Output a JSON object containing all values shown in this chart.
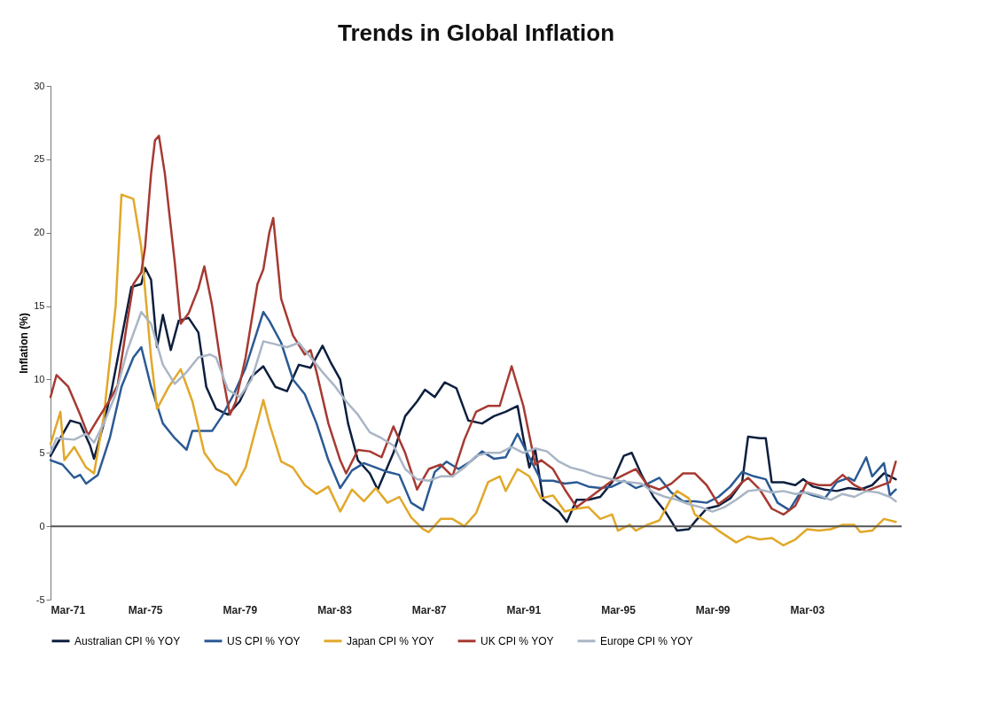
{
  "chart_data": {
    "type": "line",
    "title": "Trends in Global Inflation",
    "ylabel": "Inflation (%)",
    "xlim": [
      "1971-03",
      "2007-03"
    ],
    "ylim": [
      -5,
      30
    ],
    "yticks": [
      -5,
      0,
      5,
      10,
      15,
      20,
      25,
      30
    ],
    "xticks": [
      {
        "value": "1971-03",
        "label": "Mar-71"
      },
      {
        "value": "1975-03",
        "label": "Mar-75"
      },
      {
        "value": "1979-03",
        "label": "Mar-79"
      },
      {
        "value": "1983-03",
        "label": "Mar-83"
      },
      {
        "value": "1987-03",
        "label": "Mar-87"
      },
      {
        "value": "1991-03",
        "label": "Mar-91"
      },
      {
        "value": "1995-03",
        "label": "Mar-95"
      },
      {
        "value": "1999-03",
        "label": "Mar-99"
      },
      {
        "value": "2003-03",
        "label": "Mar-03"
      }
    ],
    "grid": false,
    "legend": "bottom",
    "marker": "none",
    "line_style": "solid",
    "ref_lines": [
      {
        "axis": "y",
        "value": 0,
        "color": "#555555"
      }
    ],
    "series": [
      {
        "name": "Australian CPI % YOY",
        "color": "#0d1f3f",
        "x": [
          "1971-03",
          "1971-08",
          "1972-01",
          "1972-06",
          "1972-11",
          "1973-01",
          "1973-06",
          "1973-10",
          "1974-03",
          "1974-08",
          "1975-01",
          "1975-03",
          "1975-06",
          "1975-09",
          "1975-12",
          "1976-04",
          "1976-08",
          "1977-01",
          "1977-06",
          "1977-10",
          "1978-03",
          "1978-09",
          "1979-03",
          "1979-09",
          "1980-03",
          "1980-09",
          "1981-03",
          "1981-09",
          "1982-03",
          "1982-09",
          "1983-01",
          "1983-06",
          "1983-10",
          "1984-03",
          "1984-09",
          "1985-01",
          "1985-09",
          "1986-03",
          "1986-09",
          "1987-01",
          "1987-06",
          "1987-11",
          "1988-05",
          "1988-11",
          "1989-06",
          "1989-12",
          "1990-06",
          "1990-12",
          "1991-03",
          "1991-06",
          "1991-09",
          "1992-01",
          "1992-09",
          "1993-01",
          "1993-06",
          "1993-12",
          "1994-06",
          "1994-12",
          "1995-06",
          "1995-10",
          "1996-03",
          "1996-09",
          "1997-03",
          "1997-09",
          "1998-03",
          "1998-06",
          "1998-12",
          "1999-06",
          "1999-12",
          "2000-06",
          "2000-09",
          "2001-03",
          "2001-06",
          "2001-09",
          "2002-03",
          "2002-09",
          "2003-01",
          "2003-06",
          "2003-12",
          "2004-06",
          "2004-12",
          "2005-06",
          "2005-12",
          "2006-06",
          "2006-12"
        ],
        "values": [
          4.8,
          6.0,
          7.2,
          7.0,
          5.5,
          4.6,
          7.0,
          9.3,
          12.8,
          16.3,
          16.5,
          17.6,
          16.8,
          12.2,
          14.4,
          12.0,
          14.0,
          14.2,
          13.2,
          9.5,
          8.0,
          7.6,
          8.5,
          10.2,
          10.9,
          9.5,
          9.2,
          11.0,
          10.8,
          12.3,
          11.2,
          10.0,
          7.0,
          4.5,
          3.6,
          2.5,
          5.0,
          7.5,
          8.5,
          9.3,
          8.8,
          9.8,
          9.4,
          7.2,
          7.0,
          7.5,
          7.8,
          8.2,
          6.0,
          4.0,
          5.2,
          1.8,
          1.0,
          0.3,
          1.8,
          1.8,
          2.0,
          3.0,
          4.8,
          5.0,
          3.5,
          2.0,
          1.0,
          -0.3,
          -0.2,
          0.3,
          1.2,
          1.4,
          1.9,
          3.0,
          6.1,
          6.0,
          6.0,
          3.0,
          3.0,
          2.8,
          3.2,
          2.7,
          2.5,
          2.4,
          2.6,
          2.5,
          2.8,
          3.6,
          3.2
        ]
      },
      {
        "name": "US CPI % YOY",
        "color": "#2b5a94",
        "x": [
          "1971-03",
          "1971-09",
          "1972-03",
          "1972-06",
          "1972-09",
          "1973-03",
          "1973-09",
          "1974-03",
          "1974-09",
          "1975-01",
          "1975-06",
          "1975-12",
          "1976-06",
          "1976-12",
          "1977-03",
          "1977-09",
          "1978-01",
          "1978-06",
          "1978-12",
          "1979-06",
          "1980-03",
          "1980-06",
          "1980-12",
          "1981-06",
          "1981-12",
          "1982-06",
          "1982-12",
          "1983-06",
          "1983-12",
          "1984-06",
          "1984-12",
          "1985-06",
          "1985-12",
          "1986-06",
          "1986-12",
          "1987-06",
          "1987-12",
          "1988-06",
          "1988-12",
          "1989-06",
          "1989-12",
          "1990-06",
          "1990-12",
          "1991-06",
          "1991-12",
          "1992-06",
          "1992-12",
          "1993-06",
          "1993-12",
          "1994-06",
          "1994-12",
          "1995-06",
          "1995-12",
          "1996-06",
          "1996-12",
          "1997-06",
          "1997-12",
          "1998-06",
          "1998-12",
          "1999-06",
          "1999-12",
          "2000-06",
          "2000-12",
          "2001-06",
          "2001-12",
          "2002-06",
          "2002-12",
          "2003-06",
          "2003-12",
          "2004-06",
          "2004-12",
          "2005-03",
          "2005-09",
          "2005-12",
          "2006-06",
          "2006-09",
          "2006-12"
        ],
        "values": [
          4.5,
          4.2,
          3.3,
          3.5,
          2.9,
          3.5,
          6.0,
          9.5,
          11.5,
          12.2,
          9.5,
          7.0,
          6.0,
          5.2,
          6.5,
          6.5,
          6.5,
          7.5,
          9.0,
          10.8,
          14.6,
          14.0,
          12.5,
          10.0,
          9.0,
          7.0,
          4.5,
          2.6,
          3.8,
          4.3,
          4.0,
          3.7,
          3.5,
          1.6,
          1.1,
          3.7,
          4.4,
          3.9,
          4.4,
          5.1,
          4.6,
          4.7,
          6.3,
          4.7,
          3.1,
          3.1,
          2.9,
          3.0,
          2.7,
          2.6,
          2.7,
          3.1,
          2.6,
          2.9,
          3.3,
          2.3,
          1.7,
          1.7,
          1.6,
          2.0,
          2.7,
          3.7,
          3.4,
          3.2,
          1.6,
          1.1,
          2.4,
          2.1,
          1.9,
          3.0,
          3.3,
          3.1,
          4.7,
          3.4,
          4.3,
          2.1,
          2.5
        ]
      },
      {
        "name": "Japan CPI % YOY",
        "color": "#e1a82a",
        "x": [
          "1971-03",
          "1971-08",
          "1971-10",
          "1972-03",
          "1972-09",
          "1973-01",
          "1973-06",
          "1973-12",
          "1974-03",
          "1974-09",
          "1975-01",
          "1975-06",
          "1975-09",
          "1976-03",
          "1976-09",
          "1977-03",
          "1977-09",
          "1978-03",
          "1978-09",
          "1979-01",
          "1979-06",
          "1980-03",
          "1980-06",
          "1980-12",
          "1981-06",
          "1981-12",
          "1982-06",
          "1982-12",
          "1983-06",
          "1983-12",
          "1984-06",
          "1984-12",
          "1985-06",
          "1985-12",
          "1986-06",
          "1986-12",
          "1987-03",
          "1987-09",
          "1988-03",
          "1988-09",
          "1989-03",
          "1989-09",
          "1990-03",
          "1990-06",
          "1990-12",
          "1991-06",
          "1991-12",
          "1992-06",
          "1992-12",
          "1993-06",
          "1993-12",
          "1994-06",
          "1994-12",
          "1995-03",
          "1995-09",
          "1995-12",
          "1996-06",
          "1996-12",
          "1997-06",
          "1997-09",
          "1998-03",
          "1998-06",
          "1998-12",
          "1999-06",
          "2000-03",
          "2000-09",
          "2001-03",
          "2001-09",
          "2002-03",
          "2002-09",
          "2003-03",
          "2003-09",
          "2004-03",
          "2004-09",
          "2005-03",
          "2005-06",
          "2005-12",
          "2006-06",
          "2006-12"
        ],
        "values": [
          5.6,
          7.8,
          4.5,
          5.4,
          4.0,
          3.6,
          7.5,
          15.0,
          22.6,
          22.3,
          19.0,
          11.5,
          8.0,
          9.5,
          10.7,
          8.5,
          5.0,
          3.9,
          3.5,
          2.8,
          4.0,
          8.6,
          7.0,
          4.4,
          4.0,
          2.8,
          2.2,
          2.7,
          1.0,
          2.5,
          1.7,
          2.6,
          1.6,
          2.0,
          0.6,
          -0.2,
          -0.4,
          0.5,
          0.5,
          0.0,
          0.9,
          3.0,
          3.4,
          2.4,
          3.9,
          3.4,
          1.9,
          2.1,
          1.0,
          1.2,
          1.3,
          0.5,
          0.8,
          -0.3,
          0.1,
          -0.3,
          0.1,
          0.4,
          1.9,
          2.4,
          1.9,
          0.8,
          0.3,
          -0.3,
          -1.1,
          -0.7,
          -0.9,
          -0.8,
          -1.3,
          -0.9,
          -0.2,
          -0.3,
          -0.2,
          0.1,
          0.1,
          -0.4,
          -0.3,
          0.5,
          0.3
        ]
      },
      {
        "name": "UK CPI % YOY",
        "color": "#a63a32",
        "x": [
          "1971-03",
          "1971-06",
          "1971-12",
          "1972-06",
          "1972-10",
          "1973-03",
          "1973-09",
          "1974-01",
          "1974-06",
          "1974-09",
          "1975-01",
          "1975-03",
          "1975-06",
          "1975-08",
          "1975-10",
          "1976-01",
          "1976-06",
          "1976-09",
          "1977-01",
          "1977-06",
          "1977-09",
          "1978-01",
          "1978-06",
          "1978-10",
          "1979-01",
          "1979-06",
          "1979-12",
          "1980-03",
          "1980-06",
          "1980-08",
          "1980-12",
          "1981-06",
          "1981-12",
          "1982-03",
          "1982-06",
          "1982-12",
          "1983-06",
          "1983-09",
          "1984-03",
          "1984-09",
          "1985-03",
          "1985-09",
          "1986-03",
          "1986-09",
          "1987-03",
          "1987-09",
          "1988-03",
          "1988-09",
          "1989-03",
          "1989-09",
          "1990-03",
          "1990-09",
          "1991-03",
          "1991-09",
          "1991-12",
          "1992-06",
          "1992-12",
          "1993-06",
          "1993-12",
          "1994-06",
          "1994-12",
          "1995-06",
          "1995-12",
          "1996-06",
          "1996-12",
          "1997-06",
          "1997-12",
          "1998-06",
          "1998-12",
          "1999-06",
          "1999-12",
          "2000-06",
          "2000-09",
          "2001-03",
          "2001-09",
          "2002-03",
          "2002-09",
          "2003-03",
          "2003-09",
          "2004-03",
          "2004-09",
          "2005-03",
          "2005-09",
          "2006-03",
          "2006-09",
          "2006-12"
        ],
        "values": [
          8.8,
          10.3,
          9.5,
          7.6,
          6.2,
          7.3,
          8.6,
          9.6,
          14.0,
          16.5,
          17.3,
          19.0,
          24.0,
          26.3,
          26.6,
          24.0,
          18.0,
          13.8,
          14.5,
          16.2,
          17.7,
          15.0,
          10.5,
          7.6,
          8.5,
          11.5,
          16.5,
          17.5,
          20.0,
          21.0,
          15.5,
          13.0,
          11.7,
          12.0,
          10.5,
          7.0,
          4.5,
          3.6,
          5.2,
          5.1,
          4.7,
          6.8,
          5.0,
          2.5,
          3.9,
          4.2,
          3.4,
          5.9,
          7.8,
          8.2,
          8.2,
          10.9,
          8.2,
          4.2,
          4.5,
          3.9,
          2.5,
          1.3,
          1.9,
          2.5,
          3.1,
          3.5,
          3.9,
          2.8,
          2.5,
          2.9,
          3.6,
          3.6,
          2.8,
          1.5,
          2.1,
          3.0,
          3.3,
          2.5,
          1.2,
          0.8,
          1.4,
          3.0,
          2.8,
          2.8,
          3.5,
          2.8,
          2.4,
          2.7,
          3.0,
          4.4
        ]
      },
      {
        "name": "Europe CPI % YOY",
        "color": "#aab6c6",
        "x": [
          "1971-03",
          "1971-06",
          "1972-03",
          "1972-09",
          "1973-01",
          "1973-06",
          "1973-12",
          "1974-06",
          "1975-01",
          "1975-06",
          "1975-12",
          "1976-06",
          "1976-12",
          "1977-06",
          "1977-12",
          "1978-03",
          "1978-09",
          "1979-03",
          "1979-09",
          "1980-03",
          "1980-09",
          "1981-03",
          "1981-09",
          "1982-03",
          "1982-09",
          "1983-03",
          "1983-09",
          "1984-03",
          "1984-09",
          "1985-03",
          "1985-09",
          "1986-03",
          "1986-09",
          "1987-03",
          "1987-09",
          "1988-03",
          "1988-09",
          "1989-03",
          "1989-09",
          "1990-03",
          "1990-09",
          "1991-03",
          "1991-09",
          "1992-03",
          "1992-09",
          "1993-03",
          "1993-09",
          "1994-03",
          "1994-09",
          "1995-03",
          "1995-09",
          "1996-03",
          "1996-09",
          "1997-03",
          "1997-09",
          "1998-03",
          "1998-09",
          "1999-03",
          "1999-09",
          "2000-03",
          "2000-09",
          "2001-03",
          "2001-09",
          "2002-03",
          "2002-09",
          "2003-03",
          "2003-09",
          "2004-03",
          "2004-09",
          "2005-03",
          "2005-09",
          "2006-03",
          "2006-09",
          "2006-12"
        ],
        "values": [
          5.0,
          6.0,
          5.9,
          6.3,
          5.7,
          7.0,
          9.0,
          12.0,
          14.6,
          13.8,
          11.0,
          9.7,
          10.5,
          11.5,
          11.7,
          11.5,
          9.3,
          8.8,
          10.0,
          12.6,
          12.4,
          12.2,
          12.5,
          11.5,
          10.5,
          9.6,
          8.5,
          7.6,
          6.4,
          6.0,
          5.5,
          3.9,
          3.2,
          3.1,
          3.4,
          3.4,
          4.0,
          4.8,
          5.0,
          5.0,
          5.4,
          5.0,
          5.3,
          5.1,
          4.4,
          4.0,
          3.8,
          3.5,
          3.3,
          3.1,
          3.0,
          2.9,
          2.3,
          2.0,
          1.8,
          1.5,
          1.3,
          1.0,
          1.3,
          1.8,
          2.4,
          2.5,
          2.3,
          2.4,
          2.2,
          2.3,
          2.1,
          1.8,
          2.2,
          2.0,
          2.4,
          2.3,
          2.0,
          1.7
        ]
      }
    ]
  }
}
